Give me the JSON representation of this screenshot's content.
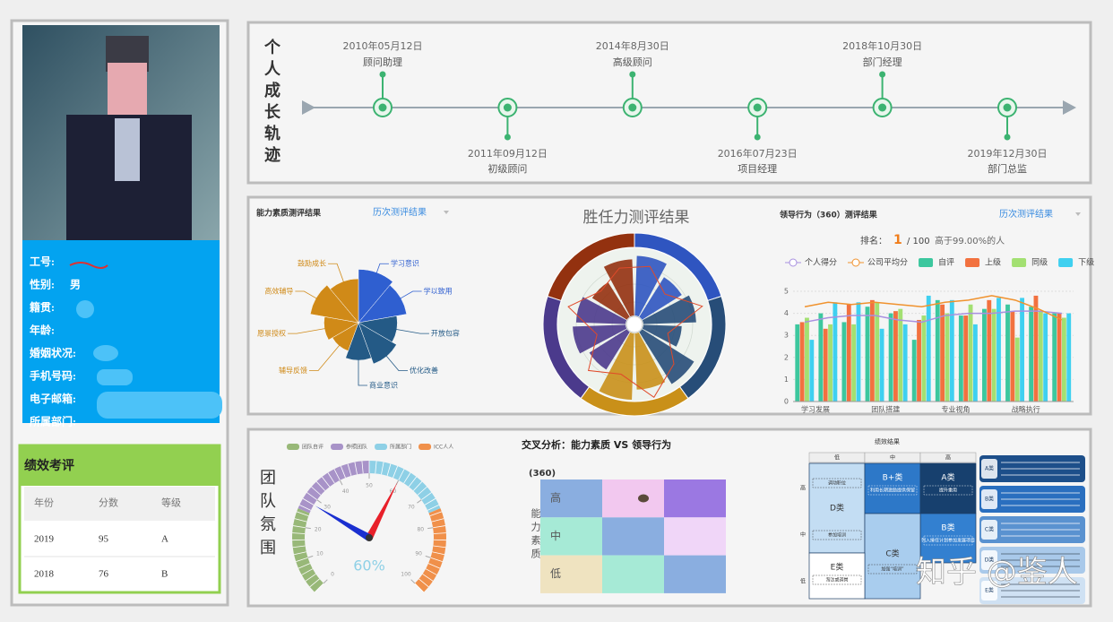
{
  "profile": {
    "fields": [
      {
        "label": "工号:"
      },
      {
        "label": "性别:",
        "value": "男"
      },
      {
        "label": "籍贯:"
      },
      {
        "label": "年龄:"
      },
      {
        "label": "婚姻状况:"
      },
      {
        "label": "手机号码:"
      },
      {
        "label": "电子邮箱:"
      },
      {
        "label": "所属部门:"
      }
    ]
  },
  "performance": {
    "title": "绩效考评",
    "header": [
      "年份",
      "分数",
      "等级"
    ],
    "rows": [
      [
        2019,
        95,
        "A"
      ],
      [
        2018,
        76,
        "B"
      ]
    ]
  },
  "timeline": {
    "title": "个人成长轨迹",
    "events": [
      {
        "date": "2010年05月12日",
        "role": "顾问助理"
      },
      {
        "date": "2011年09月12日",
        "role": "初级顾问"
      },
      {
        "date": "2014年8月30日",
        "role": "高级顾问"
      },
      {
        "date": "2016年07月23日",
        "role": "项目经理"
      },
      {
        "date": "2018年10月30日",
        "role": "部门经理"
      },
      {
        "date": "2019年12月30日",
        "role": "部门总监"
      }
    ]
  },
  "ability": {
    "title": "能力素质测评结果",
    "dropdown": "历次测评结果",
    "type": "rose",
    "categories": [
      "学习意识",
      "学以致用",
      "开放包容",
      "优化改善",
      "商业意识",
      "辅导反馈",
      "愿景授权",
      "高效辅导",
      "鼓励成长"
    ],
    "values": [
      85,
      78,
      62,
      70,
      60,
      48,
      55,
      78,
      70
    ],
    "colors": [
      "#2f5fd0",
      "#2f5fd0",
      "#245a86",
      "#245a86",
      "#245a86",
      "#d08a18",
      "#d08a18",
      "#d08a18",
      "#d08a18"
    ]
  },
  "competency": {
    "title": "胜任力测评结果",
    "type": "polar",
    "ring_colors": [
      "#2f55c0",
      "#274d78",
      "#c99019",
      "#4b3a8c",
      "#93310f"
    ],
    "values": [
      70,
      55,
      62,
      45,
      72,
      66,
      78,
      52,
      62,
      58,
      48,
      66
    ],
    "line_values": [
      60,
      40,
      72,
      30,
      55,
      78,
      50,
      66,
      35,
      70,
      45,
      58
    ],
    "line_color": "#e04a2a"
  },
  "leadership": {
    "title": "领导行为（360）测评结果",
    "dropdown": "历次测评结果",
    "rank_label": "排名：",
    "rank": "1",
    "rank_total": "/ 100",
    "percentile": "高于99.00%的人",
    "chart": {
      "type": "bar",
      "categories": [
        "学习发展",
        null,
        null,
        "团队搭建",
        null,
        null,
        "专业视角",
        null,
        null,
        "战略执行",
        null,
        null
      ],
      "series": [
        {
          "name": "个人得分",
          "kind": "line",
          "color": "#a890e0",
          "values": [
            3.6,
            3.8,
            3.9,
            3.9,
            3.7,
            3.6,
            3.9,
            4.0,
            4.0,
            4.1,
            4.1,
            4.0
          ]
        },
        {
          "name": "公司平均分",
          "kind": "line",
          "color": "#f0922e",
          "values": [
            4.3,
            4.5,
            4.4,
            4.5,
            4.4,
            4.3,
            4.5,
            4.6,
            4.8,
            4.6,
            4.2,
            3.7
          ]
        },
        {
          "name": "自评",
          "kind": "bar",
          "color": "#3cc79e",
          "values": [
            3.5,
            4.0,
            3.6,
            4.3,
            4.0,
            2.8,
            4.6,
            3.9,
            4.2,
            4.4,
            4.3,
            4.0
          ]
        },
        {
          "name": "上级",
          "kind": "bar",
          "color": "#f2713f",
          "values": [
            3.6,
            3.3,
            4.4,
            4.6,
            4.1,
            3.7,
            4.4,
            3.9,
            4.6,
            4.1,
            4.8,
            4.0
          ]
        },
        {
          "name": "同级",
          "kind": "bar",
          "color": "#a3e072",
          "values": [
            3.8,
            3.5,
            3.5,
            4.5,
            4.2,
            3.9,
            4.0,
            4.4,
            4.2,
            2.9,
            4.1,
            3.8
          ]
        },
        {
          "name": "下级",
          "kind": "bar",
          "color": "#3fd0f0",
          "values": [
            2.8,
            4.5,
            4.5,
            3.3,
            3.5,
            4.8,
            4.6,
            3.5,
            4.7,
            4.7,
            4.0,
            4.0
          ]
        }
      ],
      "ylim": [
        0,
        5
      ],
      "yticks": [
        0,
        1,
        2,
        3,
        4,
        5
      ],
      "grid": true
    }
  },
  "team": {
    "title": "团队氛围",
    "legend": [
      {
        "name": "团队自评",
        "color": "#98b878"
      },
      {
        "name": "参照团队",
        "color": "#a893c8"
      },
      {
        "name": "所属部门",
        "color": "#8ed0e6"
      },
      {
        "name": "ICC人人",
        "color": "#f0904a"
      }
    ],
    "gauge": {
      "type": "gauge",
      "range": [
        0,
        100
      ],
      "ticks": [
        0,
        10,
        20,
        30,
        40,
        50,
        60,
        70,
        80,
        90,
        100
      ],
      "bands": [
        {
          "to": 25,
          "color": "#98b878"
        },
        {
          "to": 50,
          "color": "#a893c8"
        },
        {
          "to": 75,
          "color": "#8ed0e6"
        },
        {
          "to": 100,
          "color": "#f0904a"
        }
      ],
      "value": 60,
      "value_label": "60%",
      "needles": [
        {
          "value": 60,
          "color": "#e8202a"
        },
        {
          "value": 28,
          "color": "#1a2fd0"
        }
      ]
    }
  },
  "cross": {
    "title": "交叉分析：能力素质 VS 领导行为",
    "x_label": "(360)",
    "y_label": "能力素质",
    "rows": [
      "高",
      "中",
      "低"
    ],
    "cell_colors": [
      [
        "#8aaee0",
        "#f2c8ef",
        "#9b78e2"
      ],
      [
        "#a6ead6",
        "#8aaee0",
        "#f0d6f8"
      ],
      [
        "#efe3c0",
        "#a6ead6",
        "#8aaee0"
      ]
    ]
  },
  "ninebox": {
    "title": "绩效结果",
    "columns": [
      "低",
      "中",
      "高"
    ],
    "rows": [
      "高",
      "中",
      "低"
    ],
    "cells": [
      {
        "name": "D类",
        "notes": [
          "调动职位",
          "参加培训"
        ]
      },
      {
        "name": "B+类",
        "notes": [
          "利用长期激励提供保留"
        ]
      },
      {
        "name": "A类",
        "notes": [
          "提升重用"
        ]
      },
      {
        "name": "B类",
        "notes": [
          "列入接任计划参加发展项目"
        ]
      },
      {
        "name": "C类",
        "notes": [
          "加强“培训”"
        ]
      },
      {
        "name": "E类",
        "notes": [
          "淘汰或调岗"
        ]
      }
    ],
    "legend": [
      "A类",
      "B类",
      "C类",
      "D类",
      "E类"
    ]
  },
  "watermark": "知乎 @鉴人"
}
